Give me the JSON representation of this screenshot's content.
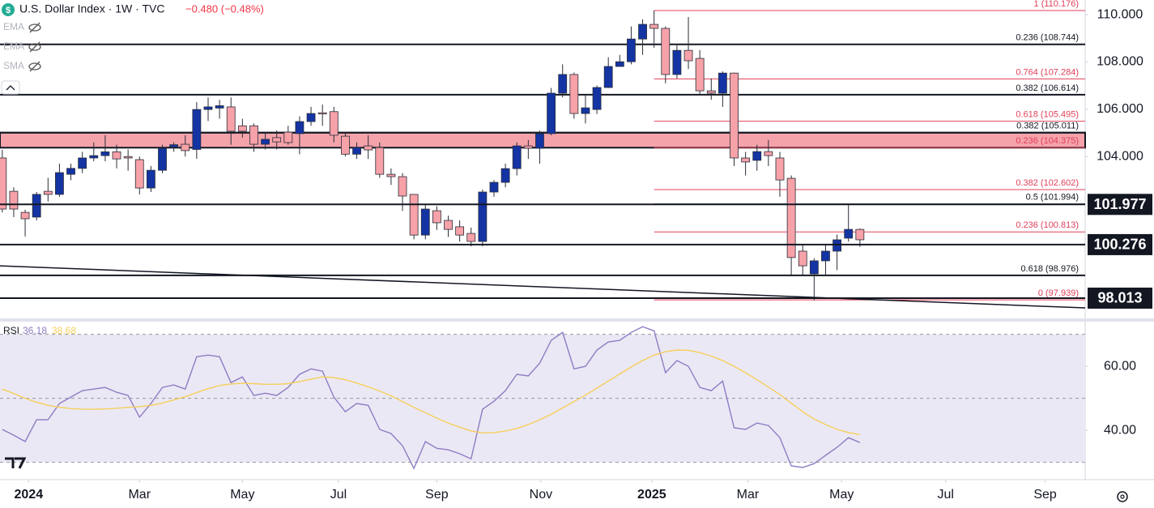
{
  "header": {
    "title": "U.S. Dollar Index · 1W · TVC",
    "change": "−0.480 (−0.48%)",
    "indicators": [
      "EMA",
      "EMA",
      "SMA"
    ]
  },
  "chart_data": [
    {
      "type": "candlestick",
      "open": [
        103.94,
        102.53,
        101.64,
        101.44,
        102.53,
        102.4,
        103.25,
        103.5,
        103.94,
        104.04,
        104.2,
        104.0,
        103.87,
        102.67,
        103.42,
        104.4,
        104.52,
        104.3,
        105.99,
        106.05,
        106.1,
        105.3,
        105.3,
        104.52,
        104.8,
        105.03,
        104.97,
        105.48,
        105.85,
        105.9,
        104.86,
        104.1,
        104.45,
        104.38,
        103.25,
        103.15,
        102.4,
        100.68,
        101.71,
        101.3,
        101.03,
        100.75,
        100.41,
        102.5,
        102.91,
        103.49,
        104.45,
        104.35,
        104.97,
        106.68,
        107.47,
        105.82,
        105.99,
        106.92,
        107.81,
        108.01,
        108.97,
        109.59,
        109.42,
        107.47,
        108.49,
        108.15,
        106.78,
        106.68,
        107.53,
        103.94,
        103.84,
        104.21,
        103.94,
        103.08,
        100.0,
        99.04,
        99.59,
        100.0,
        100.55,
        100.92
      ],
      "high": [
        104.28,
        102.7,
        101.75,
        102.5,
        103.1,
        103.7,
        103.7,
        104.2,
        104.6,
        104.9,
        104.5,
        104.3,
        104.0,
        103.6,
        104.5,
        104.6,
        104.9,
        106.3,
        106.5,
        106.4,
        106.5,
        105.6,
        105.4,
        105.0,
        105.1,
        105.3,
        105.7,
        106.1,
        106.2,
        106.1,
        105.0,
        104.6,
        104.9,
        104.6,
        103.5,
        103.3,
        102.4,
        101.95,
        101.9,
        101.5,
        101.3,
        101.0,
        102.6,
        103.0,
        103.7,
        104.6,
        104.7,
        105.1,
        106.9,
        107.9,
        107.55,
        106.6,
        107.0,
        108.2,
        108.3,
        109.5,
        109.8,
        110.18,
        109.5,
        108.7,
        109.9,
        108.5,
        107.3,
        107.6,
        107.55,
        104.2,
        104.5,
        104.7,
        104.2,
        103.2,
        100.3,
        99.7,
        100.3,
        100.7,
        102.0,
        100.96
      ],
      "low": [
        101.64,
        101.44,
        100.62,
        101.3,
        102.1,
        102.3,
        103.0,
        103.3,
        103.8,
        103.8,
        103.5,
        103.4,
        102.4,
        102.5,
        103.3,
        104.2,
        104.0,
        103.9,
        105.5,
        105.6,
        104.5,
        104.8,
        104.2,
        104.3,
        104.3,
        104.5,
        104.1,
        105.3,
        105.3,
        104.6,
        104.0,
        103.9,
        103.9,
        103.1,
        102.8,
        101.7,
        100.5,
        100.5,
        100.9,
        100.6,
        100.4,
        100.2,
        100.2,
        102.3,
        102.7,
        103.2,
        103.9,
        103.7,
        104.9,
        106.5,
        105.6,
        105.4,
        105.8,
        106.9,
        107.8,
        107.9,
        108.3,
        108.6,
        107.1,
        107.3,
        107.7,
        106.6,
        106.4,
        106.1,
        103.6,
        103.2,
        103.4,
        103.6,
        102.3,
        99.0,
        98.98,
        97.92,
        99.0,
        99.2,
        100.4,
        100.18
      ],
      "close": [
        101.78,
        101.78,
        101.37,
        102.4,
        102.4,
        103.32,
        103.5,
        103.94,
        104.04,
        104.2,
        103.9,
        103.94,
        102.67,
        103.42,
        104.35,
        104.5,
        104.25,
        105.99,
        106.1,
        106.15,
        105.07,
        105.07,
        104.52,
        104.73,
        104.62,
        104.59,
        105.48,
        105.82,
        105.8,
        104.9,
        104.1,
        104.38,
        104.28,
        103.25,
        103.15,
        102.33,
        100.68,
        101.78,
        101.2,
        100.92,
        100.68,
        100.41,
        102.5,
        102.91,
        103.49,
        104.45,
        104.35,
        104.97,
        106.68,
        107.47,
        105.82,
        106.06,
        106.92,
        107.81,
        108.01,
        108.97,
        109.59,
        109.42,
        107.47,
        108.49,
        108.05,
        106.78,
        106.68,
        107.53,
        103.94,
        103.77,
        104.21,
        104.04,
        103.01,
        99.73,
        99.38,
        99.59,
        100.0,
        100.48,
        100.92,
        100.48
      ],
      "up_color": "#1434a4",
      "down_color": "#f7a1a8",
      "xlim": [
        -0.2,
        94.7
      ],
      "ylim": [
        97.19,
        110.62
      ],
      "xticks": [
        {
          "value": 2.3,
          "label": "2024"
        },
        {
          "value": 12,
          "label": "Mar"
        },
        {
          "value": 21,
          "label": "May"
        },
        {
          "value": 29.4,
          "label": "Jul"
        },
        {
          "value": 38,
          "label": "Sep"
        },
        {
          "value": 47.1,
          "label": "Nov"
        },
        {
          "value": 56.8,
          "label": "2025"
        },
        {
          "value": 65.2,
          "label": "Mar"
        },
        {
          "value": 73.4,
          "label": "May"
        },
        {
          "value": 82.5,
          "label": "Jul"
        },
        {
          "value": 91.2,
          "label": "Sep"
        }
      ],
      "yticks": [
        {
          "value": 110,
          "label": "110.000"
        },
        {
          "value": 108,
          "label": "108.000"
        },
        {
          "value": 106,
          "label": "106.000"
        },
        {
          "value": 104,
          "label": "104.000"
        }
      ],
      "zone": [
        104.375,
        105.011
      ],
      "zone_color": "#f5a3ab",
      "levels": [
        {
          "value": 110.176,
          "label": "1 (110.176)",
          "color": "#e0405a",
          "span": "fib"
        },
        {
          "value": 108.744,
          "label": "0.236 (108.744)",
          "color": "#131722",
          "span": "full"
        },
        {
          "value": 107.284,
          "label": "0.764 (107.284)",
          "color": "#e0405a",
          "span": "fib"
        },
        {
          "value": 106.614,
          "label": "0.382 (106.614)",
          "color": "#131722",
          "span": "full"
        },
        {
          "value": 105.495,
          "label": "0.618 (105.495)",
          "color": "#e0405a",
          "span": "fib"
        },
        {
          "value": 105.011,
          "label": "0.382 (105.011)",
          "color": "#131722",
          "span": "full"
        },
        {
          "value": 104.375,
          "label": "0.236 (104.375)",
          "color": "#e0405a",
          "span": "fib"
        },
        {
          "value": 102.602,
          "label": "0.382 (102.602)",
          "color": "#e0405a",
          "span": "fib"
        },
        {
          "value": 101.994,
          "label": "0.5 (101.994)",
          "color": "#131722",
          "span": "fib"
        },
        {
          "value": 100.813,
          "label": "0.236 (100.813)",
          "color": "#e0405a",
          "span": "fib"
        },
        {
          "value": 98.976,
          "label": "0.618 (98.976)",
          "color": "#131722",
          "span": "full"
        },
        {
          "value": 97.939,
          "label": "0 (97.939)",
          "color": "#e0405a",
          "span": "fib"
        }
      ],
      "badges": [
        101.977,
        100.276,
        98.013
      ],
      "trendline": {
        "x": [
          -0.2,
          94.7
        ],
        "y": [
          99.38,
          97.6
        ]
      }
    },
    {
      "type": "line",
      "title": "RSI",
      "series": [
        {
          "color": "#8e7cc3",
          "values": [
            40.3,
            38.5,
            36.5,
            43.3,
            43.3,
            48.4,
            50.4,
            52.4,
            52.9,
            53.4,
            51.9,
            50.9,
            44.1,
            48.4,
            53.4,
            54.2,
            52.9,
            63.0,
            63.5,
            63.0,
            54.9,
            56.7,
            50.9,
            51.6,
            50.9,
            53.4,
            57.5,
            59.2,
            58.5,
            50.4,
            45.8,
            48.4,
            47.8,
            40.3,
            39.0,
            35.2,
            28.1,
            36.5,
            34.4,
            33.9,
            32.7,
            31.1,
            46.6,
            49.1,
            52.4,
            57.5,
            57.0,
            61.0,
            68.1,
            70.6,
            59.2,
            60.0,
            65.1,
            67.6,
            68.1,
            70.6,
            72.4,
            71.1,
            58.0,
            61.8,
            60.0,
            53.4,
            52.4,
            55.4,
            40.8,
            40.3,
            42.3,
            41.5,
            37.7,
            28.9,
            28.4,
            29.6,
            32.2,
            34.7,
            37.7,
            36.18
          ]
        },
        {
          "color": "#f5cf5a",
          "values": [
            52.9,
            51.5,
            50.0,
            48.8,
            47.8,
            47.2,
            46.8,
            46.6,
            46.6,
            46.7,
            46.9,
            47.2,
            47.4,
            47.8,
            48.5,
            49.5,
            50.5,
            51.8,
            53.0,
            54.0,
            54.5,
            54.7,
            54.6,
            54.4,
            54.4,
            54.6,
            55.2,
            56.0,
            56.7,
            56.5,
            55.8,
            54.8,
            53.6,
            52.3,
            50.8,
            49.0,
            47.2,
            45.5,
            43.8,
            42.3,
            41.0,
            39.8,
            39.2,
            39.3,
            39.8,
            40.6,
            41.8,
            43.3,
            45.0,
            47.0,
            49.0,
            51.0,
            53.2,
            55.4,
            57.6,
            59.8,
            61.8,
            63.5,
            64.6,
            65.1,
            65.0,
            64.3,
            63.2,
            61.8,
            60.0,
            58.0,
            55.8,
            53.5,
            51.2,
            48.5,
            45.8,
            43.5,
            41.8,
            40.3,
            39.3,
            38.68
          ]
        }
      ],
      "xlim": [
        -0.2,
        94.7
      ],
      "ylim": [
        25.1,
        73.2
      ],
      "yticks": [
        {
          "value": 60,
          "label": "60.00"
        },
        {
          "value": 40,
          "label": "40.00"
        }
      ],
      "bands": [
        70,
        50,
        30
      ],
      "band_color": "#ebe8f5"
    }
  ]
}
